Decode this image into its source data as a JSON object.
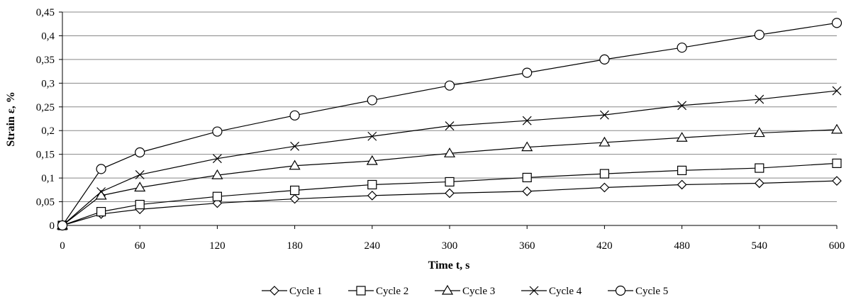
{
  "chart_data": {
    "type": "line",
    "xlabel": "Time  t, s",
    "ylabel": "Strain  ε, %",
    "xlim": [
      0,
      600
    ],
    "ylim": [
      0,
      0.45
    ],
    "xticks": [
      "0",
      "60",
      "120",
      "180",
      "240",
      "300",
      "360",
      "420",
      "480",
      "540",
      "600"
    ],
    "yticks": [
      "0",
      "0,05",
      "0,1",
      "0,15",
      "0,2",
      "0,25",
      "0,3",
      "0,35",
      "0,4",
      "0,45"
    ],
    "grid": "horizontal",
    "legend_position": "bottom",
    "x": [
      0,
      30,
      60,
      120,
      180,
      240,
      300,
      360,
      420,
      480,
      540,
      600
    ],
    "series": [
      {
        "name": "Cycle 1",
        "marker": "diamond",
        "values": [
          0,
          0.024,
          0.034,
          0.047,
          0.056,
          0.063,
          0.068,
          0.072,
          0.08,
          0.086,
          0.089,
          0.094
        ]
      },
      {
        "name": "Cycle 2",
        "marker": "square",
        "values": [
          0,
          0.029,
          0.044,
          0.061,
          0.074,
          0.086,
          0.092,
          0.101,
          0.109,
          0.116,
          0.121,
          0.131
        ]
      },
      {
        "name": "Cycle 3",
        "marker": "triangle",
        "values": [
          0,
          0.063,
          0.08,
          0.106,
          0.126,
          0.136,
          0.152,
          0.165,
          0.175,
          0.185,
          0.195,
          0.202
        ]
      },
      {
        "name": "Cycle 4",
        "marker": "x",
        "values": [
          0,
          0.071,
          0.107,
          0.141,
          0.167,
          0.188,
          0.21,
          0.221,
          0.233,
          0.253,
          0.266,
          0.284
        ]
      },
      {
        "name": "Cycle 5",
        "marker": "circle",
        "values": [
          0,
          0.119,
          0.154,
          0.198,
          0.232,
          0.264,
          0.295,
          0.322,
          0.35,
          0.375,
          0.402,
          0.427
        ]
      }
    ],
    "colors": {
      "line": "#000000",
      "grid": "#888888",
      "axis": "#000000"
    }
  }
}
